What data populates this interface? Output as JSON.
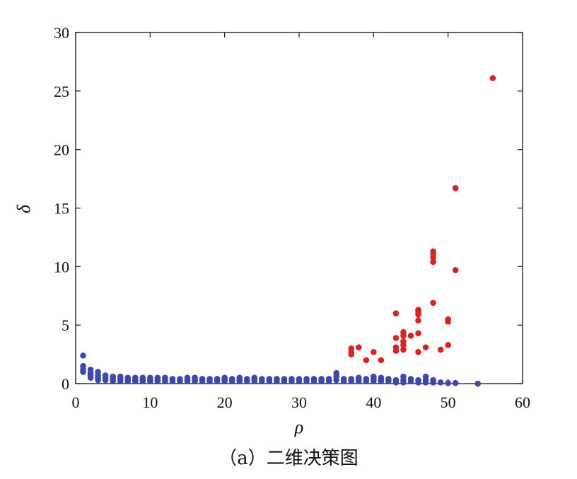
{
  "caption": "（a）二维决策图",
  "chart_data": {
    "type": "scatter",
    "title": "",
    "xlabel": "ρ",
    "ylabel": "δ",
    "xlim": [
      0,
      60
    ],
    "ylim": [
      0,
      30
    ],
    "xticks": [
      0,
      10,
      20,
      30,
      40,
      50,
      60
    ],
    "yticks": [
      0,
      5,
      10,
      15,
      20,
      25,
      30
    ],
    "grid": false,
    "colors": {
      "blue": "#3f48a8",
      "red": "#d42424"
    },
    "series": [
      {
        "color_key": "blue",
        "points": [
          [
            1,
            2.4
          ],
          [
            1,
            1.5
          ],
          [
            1,
            1.2
          ],
          [
            1,
            1.0
          ],
          [
            2,
            1.2
          ],
          [
            2,
            0.9
          ],
          [
            2,
            0.7
          ],
          [
            2,
            0.5
          ],
          [
            3,
            1.0
          ],
          [
            3,
            0.7
          ],
          [
            3,
            0.5
          ],
          [
            3,
            0.3
          ],
          [
            4,
            0.7
          ],
          [
            4,
            0.5
          ],
          [
            4,
            0.3
          ],
          [
            5,
            0.6
          ],
          [
            5,
            0.4
          ],
          [
            5,
            0.2
          ],
          [
            6,
            0.6
          ],
          [
            6,
            0.4
          ],
          [
            6,
            0.2
          ],
          [
            7,
            0.5
          ],
          [
            7,
            0.3
          ],
          [
            7,
            0.2
          ],
          [
            8,
            0.5
          ],
          [
            8,
            0.3
          ],
          [
            8,
            0.2
          ],
          [
            9,
            0.5
          ],
          [
            9,
            0.3
          ],
          [
            9,
            0.2
          ],
          [
            10,
            0.5
          ],
          [
            10,
            0.3
          ],
          [
            10,
            0.2
          ],
          [
            11,
            0.5
          ],
          [
            11,
            0.3
          ],
          [
            11,
            0.2
          ],
          [
            12,
            0.5
          ],
          [
            12,
            0.3
          ],
          [
            12,
            0.2
          ],
          [
            13,
            0.4
          ],
          [
            13,
            0.2
          ],
          [
            14,
            0.4
          ],
          [
            14,
            0.2
          ],
          [
            15,
            0.5
          ],
          [
            15,
            0.3
          ],
          [
            15,
            0.2
          ],
          [
            16,
            0.5
          ],
          [
            16,
            0.3
          ],
          [
            16,
            0.2
          ],
          [
            17,
            0.4
          ],
          [
            17,
            0.2
          ],
          [
            18,
            0.4
          ],
          [
            18,
            0.2
          ],
          [
            19,
            0.4
          ],
          [
            19,
            0.2
          ],
          [
            20,
            0.5
          ],
          [
            20,
            0.3
          ],
          [
            20,
            0.2
          ],
          [
            21,
            0.4
          ],
          [
            21,
            0.2
          ],
          [
            22,
            0.5
          ],
          [
            22,
            0.3
          ],
          [
            22,
            0.2
          ],
          [
            23,
            0.4
          ],
          [
            23,
            0.2
          ],
          [
            24,
            0.5
          ],
          [
            24,
            0.3
          ],
          [
            24,
            0.2
          ],
          [
            25,
            0.4
          ],
          [
            25,
            0.2
          ],
          [
            26,
            0.4
          ],
          [
            26,
            0.2
          ],
          [
            27,
            0.4
          ],
          [
            27,
            0.2
          ],
          [
            28,
            0.4
          ],
          [
            28,
            0.2
          ],
          [
            29,
            0.4
          ],
          [
            29,
            0.2
          ],
          [
            30,
            0.4
          ],
          [
            30,
            0.2
          ],
          [
            31,
            0.4
          ],
          [
            31,
            0.2
          ],
          [
            32,
            0.4
          ],
          [
            32,
            0.2
          ],
          [
            33,
            0.4
          ],
          [
            33,
            0.2
          ],
          [
            34,
            0.4
          ],
          [
            34,
            0.2
          ],
          [
            35,
            0.9
          ],
          [
            35,
            0.6
          ],
          [
            35,
            0.3
          ],
          [
            36,
            0.4
          ],
          [
            36,
            0.2
          ],
          [
            37,
            0.4
          ],
          [
            37,
            0.2
          ],
          [
            38,
            0.5
          ],
          [
            38,
            0.3
          ],
          [
            38,
            0.2
          ],
          [
            39,
            0.4
          ],
          [
            39,
            0.2
          ],
          [
            40,
            0.6
          ],
          [
            40,
            0.4
          ],
          [
            40,
            0.2
          ],
          [
            41,
            0.5
          ],
          [
            41,
            0.3
          ],
          [
            41,
            0.2
          ],
          [
            42,
            0.4
          ],
          [
            42,
            0.2
          ],
          [
            43,
            0.3
          ],
          [
            43,
            0.1
          ],
          [
            44,
            0.6
          ],
          [
            44,
            0.3
          ],
          [
            44,
            0.1
          ],
          [
            45,
            0.4
          ],
          [
            45,
            0.2
          ],
          [
            46,
            0.3
          ],
          [
            46,
            0.1
          ],
          [
            47,
            0.6
          ],
          [
            47,
            0.3
          ],
          [
            47,
            0.1
          ],
          [
            48,
            0.3
          ],
          [
            48,
            0.1
          ],
          [
            49,
            0.1
          ],
          [
            50,
            0.05
          ],
          [
            51,
            0.05
          ],
          [
            54,
            0.0
          ]
        ]
      },
      {
        "color_key": "red",
        "points": [
          [
            37,
            3.0
          ],
          [
            37,
            2.7
          ],
          [
            37,
            2.5
          ],
          [
            38,
            3.1
          ],
          [
            39,
            2.0
          ],
          [
            40,
            2.7
          ],
          [
            41,
            2.0
          ],
          [
            43,
            6.0
          ],
          [
            43,
            3.9
          ],
          [
            43,
            3.1
          ],
          [
            43,
            2.8
          ],
          [
            44,
            4.4
          ],
          [
            44,
            4.1
          ],
          [
            44,
            3.6
          ],
          [
            44,
            3.3
          ],
          [
            44,
            2.9
          ],
          [
            45,
            4.1
          ],
          [
            46,
            6.3
          ],
          [
            46,
            6.1
          ],
          [
            46,
            5.9
          ],
          [
            46,
            5.4
          ],
          [
            46,
            4.3
          ],
          [
            46,
            2.7
          ],
          [
            47,
            3.1
          ],
          [
            48,
            11.3
          ],
          [
            48,
            11.1
          ],
          [
            48,
            10.8
          ],
          [
            48,
            10.4
          ],
          [
            48,
            6.9
          ],
          [
            49,
            2.9
          ],
          [
            50,
            5.5
          ],
          [
            50,
            5.3
          ],
          [
            50,
            3.3
          ],
          [
            51,
            16.7
          ],
          [
            51,
            9.7
          ],
          [
            56,
            26.1
          ]
        ]
      }
    ]
  }
}
